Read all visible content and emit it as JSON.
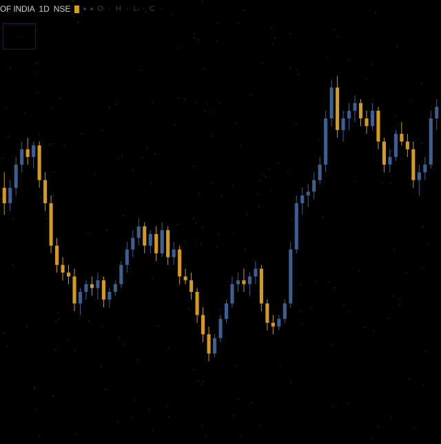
{
  "header": {
    "symbol": "OF INDIA",
    "interval": "1D",
    "exchange": "NSE",
    "ohlc_text": "O  · H  · L  · C  ·"
  },
  "indicator": {
    "label": "· ·"
  },
  "footer": {
    "label": ""
  },
  "colors": {
    "up": "#3d5f8f",
    "down": "#d49a1e",
    "background": "#000000",
    "star": "#3a3a4a"
  },
  "chart_data": {
    "type": "candlestick",
    "title": "",
    "xlabel": "",
    "ylabel": "",
    "ylim": [
      0,
      100
    ],
    "grid": false,
    "series": [
      {
        "values": [
          {
            "o": 62,
            "h": 66,
            "l": 55,
            "c": 58
          },
          {
            "o": 58,
            "h": 64,
            "l": 56,
            "c": 62
          },
          {
            "o": 62,
            "h": 70,
            "l": 60,
            "c": 68
          },
          {
            "o": 68,
            "h": 74,
            "l": 66,
            "c": 72
          },
          {
            "o": 72,
            "h": 75,
            "l": 68,
            "c": 70
          },
          {
            "o": 70,
            "h": 74,
            "l": 67,
            "c": 73
          },
          {
            "o": 73,
            "h": 74,
            "l": 62,
            "c": 64
          },
          {
            "o": 64,
            "h": 66,
            "l": 56,
            "c": 58
          },
          {
            "o": 58,
            "h": 60,
            "l": 45,
            "c": 47
          },
          {
            "o": 47,
            "h": 49,
            "l": 40,
            "c": 42
          },
          {
            "o": 42,
            "h": 44,
            "l": 38,
            "c": 40
          },
          {
            "o": 40,
            "h": 42,
            "l": 37,
            "c": 39
          },
          {
            "o": 39,
            "h": 41,
            "l": 30,
            "c": 32
          },
          {
            "o": 32,
            "h": 36,
            "l": 29,
            "c": 35
          },
          {
            "o": 35,
            "h": 38,
            "l": 33,
            "c": 37
          },
          {
            "o": 37,
            "h": 39,
            "l": 34,
            "c": 36
          },
          {
            "o": 36,
            "h": 40,
            "l": 33,
            "c": 38
          },
          {
            "o": 38,
            "h": 39,
            "l": 31,
            "c": 33
          },
          {
            "o": 33,
            "h": 36,
            "l": 31,
            "c": 35
          },
          {
            "o": 35,
            "h": 38,
            "l": 34,
            "c": 37
          },
          {
            "o": 37,
            "h": 43,
            "l": 36,
            "c": 42
          },
          {
            "o": 42,
            "h": 48,
            "l": 40,
            "c": 46
          },
          {
            "o": 46,
            "h": 51,
            "l": 44,
            "c": 49
          },
          {
            "o": 49,
            "h": 54,
            "l": 47,
            "c": 52
          },
          {
            "o": 52,
            "h": 53,
            "l": 45,
            "c": 47
          },
          {
            "o": 47,
            "h": 51,
            "l": 45,
            "c": 50
          },
          {
            "o": 50,
            "h": 52,
            "l": 43,
            "c": 45
          },
          {
            "o": 45,
            "h": 53,
            "l": 44,
            "c": 51
          },
          {
            "o": 51,
            "h": 52,
            "l": 42,
            "c": 44
          },
          {
            "o": 44,
            "h": 48,
            "l": 42,
            "c": 46
          },
          {
            "o": 46,
            "h": 47,
            "l": 37,
            "c": 39
          },
          {
            "o": 39,
            "h": 41,
            "l": 37,
            "c": 38
          },
          {
            "o": 38,
            "h": 40,
            "l": 33,
            "c": 35
          },
          {
            "o": 35,
            "h": 36,
            "l": 27,
            "c": 29
          },
          {
            "o": 29,
            "h": 31,
            "l": 22,
            "c": 24
          },
          {
            "o": 24,
            "h": 26,
            "l": 17,
            "c": 19
          },
          {
            "o": 19,
            "h": 24,
            "l": 18,
            "c": 23
          },
          {
            "o": 23,
            "h": 29,
            "l": 22,
            "c": 28
          },
          {
            "o": 28,
            "h": 33,
            "l": 27,
            "c": 32
          },
          {
            "o": 32,
            "h": 39,
            "l": 31,
            "c": 37
          },
          {
            "o": 37,
            "h": 40,
            "l": 35,
            "c": 38
          },
          {
            "o": 38,
            "h": 41,
            "l": 35,
            "c": 37
          },
          {
            "o": 37,
            "h": 40,
            "l": 34,
            "c": 39
          },
          {
            "o": 39,
            "h": 43,
            "l": 37,
            "c": 41
          },
          {
            "o": 41,
            "h": 42,
            "l": 30,
            "c": 32
          },
          {
            "o": 32,
            "h": 33,
            "l": 25,
            "c": 27
          },
          {
            "o": 27,
            "h": 29,
            "l": 24,
            "c": 26
          },
          {
            "o": 26,
            "h": 29,
            "l": 25,
            "c": 28
          },
          {
            "o": 28,
            "h": 33,
            "l": 27,
            "c": 32
          },
          {
            "o": 32,
            "h": 48,
            "l": 31,
            "c": 46
          },
          {
            "o": 46,
            "h": 60,
            "l": 45,
            "c": 58
          },
          {
            "o": 58,
            "h": 62,
            "l": 55,
            "c": 60
          },
          {
            "o": 60,
            "h": 63,
            "l": 57,
            "c": 61
          },
          {
            "o": 61,
            "h": 66,
            "l": 59,
            "c": 64
          },
          {
            "o": 64,
            "h": 70,
            "l": 63,
            "c": 68
          },
          {
            "o": 68,
            "h": 82,
            "l": 66,
            "c": 80
          },
          {
            "o": 80,
            "h": 90,
            "l": 78,
            "c": 88
          },
          {
            "o": 88,
            "h": 91,
            "l": 75,
            "c": 77
          },
          {
            "o": 77,
            "h": 82,
            "l": 74,
            "c": 80
          },
          {
            "o": 80,
            "h": 84,
            "l": 77,
            "c": 82
          },
          {
            "o": 82,
            "h": 86,
            "l": 79,
            "c": 84
          },
          {
            "o": 84,
            "h": 85,
            "l": 78,
            "c": 80
          },
          {
            "o": 80,
            "h": 82,
            "l": 76,
            "c": 78
          },
          {
            "o": 78,
            "h": 84,
            "l": 77,
            "c": 82
          },
          {
            "o": 82,
            "h": 83,
            "l": 72,
            "c": 74
          },
          {
            "o": 74,
            "h": 75,
            "l": 66,
            "c": 68
          },
          {
            "o": 68,
            "h": 72,
            "l": 66,
            "c": 70
          },
          {
            "o": 70,
            "h": 77,
            "l": 69,
            "c": 76
          },
          {
            "o": 76,
            "h": 79,
            "l": 73,
            "c": 74
          },
          {
            "o": 74,
            "h": 76,
            "l": 70,
            "c": 72
          },
          {
            "o": 72,
            "h": 74,
            "l": 62,
            "c": 64
          },
          {
            "o": 64,
            "h": 68,
            "l": 60,
            "c": 66
          },
          {
            "o": 66,
            "h": 70,
            "l": 64,
            "c": 68
          },
          {
            "o": 68,
            "h": 82,
            "l": 67,
            "c": 80
          },
          {
            "o": 80,
            "h": 85,
            "l": 77,
            "c": 83
          }
        ]
      }
    ]
  }
}
